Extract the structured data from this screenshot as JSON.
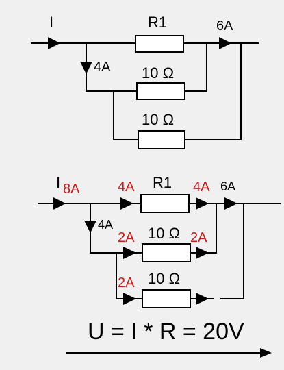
{
  "colors": {
    "background": "#f0f0f0",
    "wire": "#000000",
    "annotation": "#d01818"
  },
  "top_circuit": {
    "current_label": "I",
    "resistor_r1_label": "R1",
    "output_current": "6A",
    "branch_current": "4A",
    "resistor_2_label": "10 Ω",
    "resistor_3_label": "10 Ω"
  },
  "bottom_circuit": {
    "current_label": "I",
    "total_current": "8A",
    "r1_in_current": "4A",
    "resistor_r1_label": "R1",
    "r1_out_current": "4A",
    "output_current": "6A",
    "branch_current": "4A",
    "r2_in_current": "2A",
    "resistor_2_label": "10 Ω",
    "r2_out_current": "2A",
    "r3_in_current": "2A",
    "resistor_3_label": "10 Ω"
  },
  "equation": "U = I * R = 20V"
}
